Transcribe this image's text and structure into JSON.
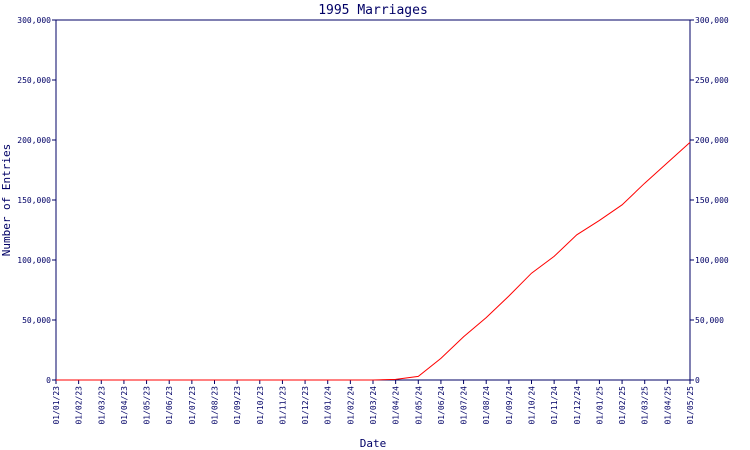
{
  "chart_data": {
    "type": "line",
    "title": "1995 Marriages",
    "xlabel": "Date",
    "ylabel": "Number of Entries",
    "x_ticks": [
      "01/01/23",
      "01/02/23",
      "01/03/23",
      "01/04/23",
      "01/05/23",
      "01/06/23",
      "01/07/23",
      "01/08/23",
      "01/09/23",
      "01/10/23",
      "01/11/23",
      "01/12/23",
      "01/01/24",
      "01/02/24",
      "01/03/24",
      "01/04/24",
      "01/05/24",
      "01/06/24",
      "01/07/24",
      "01/08/24",
      "01/09/24",
      "01/10/24",
      "01/11/24",
      "01/12/24",
      "01/01/25",
      "01/02/25",
      "01/03/25",
      "01/04/25",
      "01/05/25"
    ],
    "y_ticks": [
      0,
      50000,
      100000,
      150000,
      200000,
      250000,
      300000
    ],
    "y_tick_labels": [
      "0",
      "50,000",
      "100,000",
      "150,000",
      "200,000",
      "250,000",
      "300,000"
    ],
    "ylim": [
      0,
      300000
    ],
    "grid": false,
    "line_color": "#ff0000",
    "axis_color": "#000066",
    "series": [
      {
        "x": [
          "01/01/23",
          "01/02/23",
          "01/03/23",
          "01/04/23",
          "01/05/23",
          "01/06/23",
          "01/07/23",
          "01/08/23",
          "01/09/23",
          "01/10/23",
          "01/11/23",
          "01/12/23",
          "01/01/24",
          "01/02/24",
          "01/03/24",
          "01/04/24",
          "01/05/24",
          "01/06/24",
          "01/07/24",
          "01/08/24",
          "01/09/24",
          "01/10/24",
          "01/11/24",
          "01/12/24",
          "01/01/25",
          "01/02/25",
          "01/03/25",
          "01/04/25",
          "01/05/25"
        ],
        "values": [
          0,
          0,
          0,
          0,
          0,
          0,
          0,
          0,
          0,
          0,
          0,
          0,
          0,
          0,
          0,
          500,
          3000,
          18000,
          36000,
          52000,
          70000,
          89000,
          103000,
          121000,
          133000,
          146000,
          164000,
          181000,
          198000
        ]
      }
    ]
  }
}
